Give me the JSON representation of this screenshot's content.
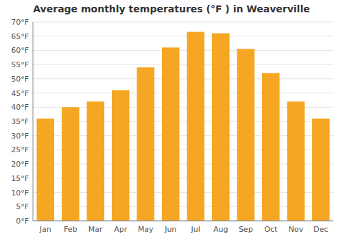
{
  "chart_data": {
    "type": "bar",
    "title": "Average monthly temperatures (°F ) in Weaverville",
    "categories": [
      "Jan",
      "Feb",
      "Mar",
      "Apr",
      "May",
      "Jun",
      "Jul",
      "Aug",
      "Sep",
      "Oct",
      "Nov",
      "Dec"
    ],
    "values": [
      36,
      40,
      42,
      46,
      54,
      61,
      66.5,
      66,
      60.5,
      52,
      42,
      36
    ],
    "color": "#F5A623",
    "ylim": [
      0,
      70
    ],
    "yticks": [
      {
        "value": 0,
        "label": "0°F"
      },
      {
        "value": 5,
        "label": "5°F"
      },
      {
        "value": 10,
        "label": "10°F"
      },
      {
        "value": 15,
        "label": "15°F"
      },
      {
        "value": 20,
        "label": "20°F"
      },
      {
        "value": 25,
        "label": "25°F"
      },
      {
        "value": 30,
        "label": "30°F"
      },
      {
        "value": 35,
        "label": "35°F"
      },
      {
        "value": 40,
        "label": "40°F"
      },
      {
        "value": 45,
        "label": "45°F"
      },
      {
        "value": 50,
        "label": "50°F"
      },
      {
        "value": 55,
        "label": "55°F"
      },
      {
        "value": 60,
        "label": "60°F"
      },
      {
        "value": 65,
        "label": "65°F"
      },
      {
        "value": 70,
        "label": "70°F"
      }
    ],
    "grid": true
  }
}
